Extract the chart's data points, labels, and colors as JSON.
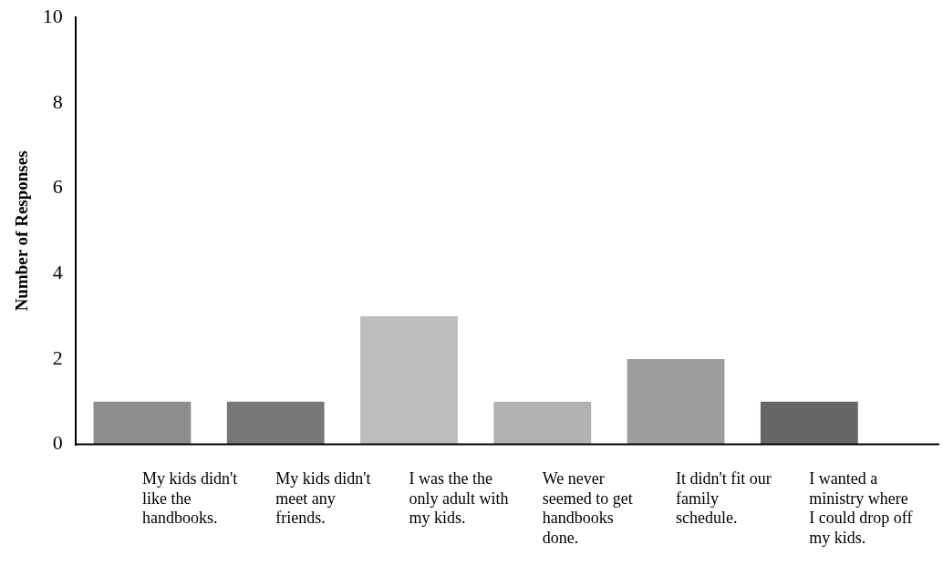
{
  "chart_data": {
    "type": "bar",
    "ylabel": "Number of Responses",
    "categories": [
      "My kids didn't like the handbooks.",
      "My kids didn't meet any friends.",
      "I was the the only adult with my kids.",
      "We never seemed to get handbooks done.",
      "It didn't fit our family schedule.",
      "I wanted a ministry where I could drop off my kids."
    ],
    "values": [
      1,
      1,
      3,
      1,
      2,
      1
    ],
    "colors": [
      "#8e8e8e",
      "#777777",
      "#bdbdbd",
      "#b2b2b2",
      "#9e9e9e",
      "#666666"
    ],
    "ylim": [
      0,
      10
    ],
    "yticks": [
      0,
      2,
      4,
      6,
      8,
      10
    ],
    "grid": false,
    "legend": false
  }
}
